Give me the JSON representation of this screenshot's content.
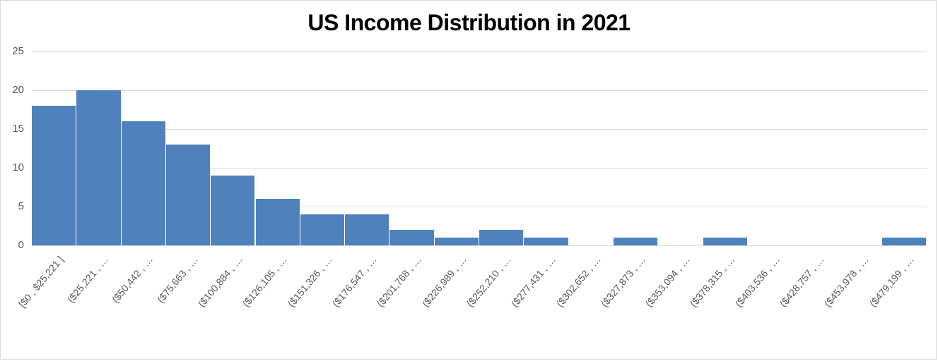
{
  "chart_data": {
    "type": "bar",
    "title": "US Income Distribution in 2021",
    "xlabel": "",
    "ylabel": "",
    "ylim": [
      0,
      25
    ],
    "yticks": [
      0,
      5,
      10,
      15,
      20,
      25
    ],
    "grid": true,
    "legend": "none",
    "bar_color": "#4f81bd",
    "categories": [
      "[$0 , $25,221 ]",
      "($25,221 , …",
      "($50,442 , …",
      "($75,663 , …",
      "($100,884 , …",
      "($126,105 , …",
      "($151,326 , …",
      "($176,547 , …",
      "($201,768 , …",
      "($226,989 , …",
      "($252,210 , …",
      "($277,431 , …",
      "($302,652 , …",
      "($327,873 , …",
      "($353,094 , …",
      "($378,315 , …",
      "($403,536 , …",
      "($428,757 , …",
      "($453,978 , …",
      "($479,199 , …"
    ],
    "values": [
      18,
      20,
      16,
      13,
      9,
      6,
      4,
      4,
      2,
      1,
      2,
      1,
      0,
      1,
      0,
      1,
      0,
      0,
      0,
      1
    ]
  }
}
